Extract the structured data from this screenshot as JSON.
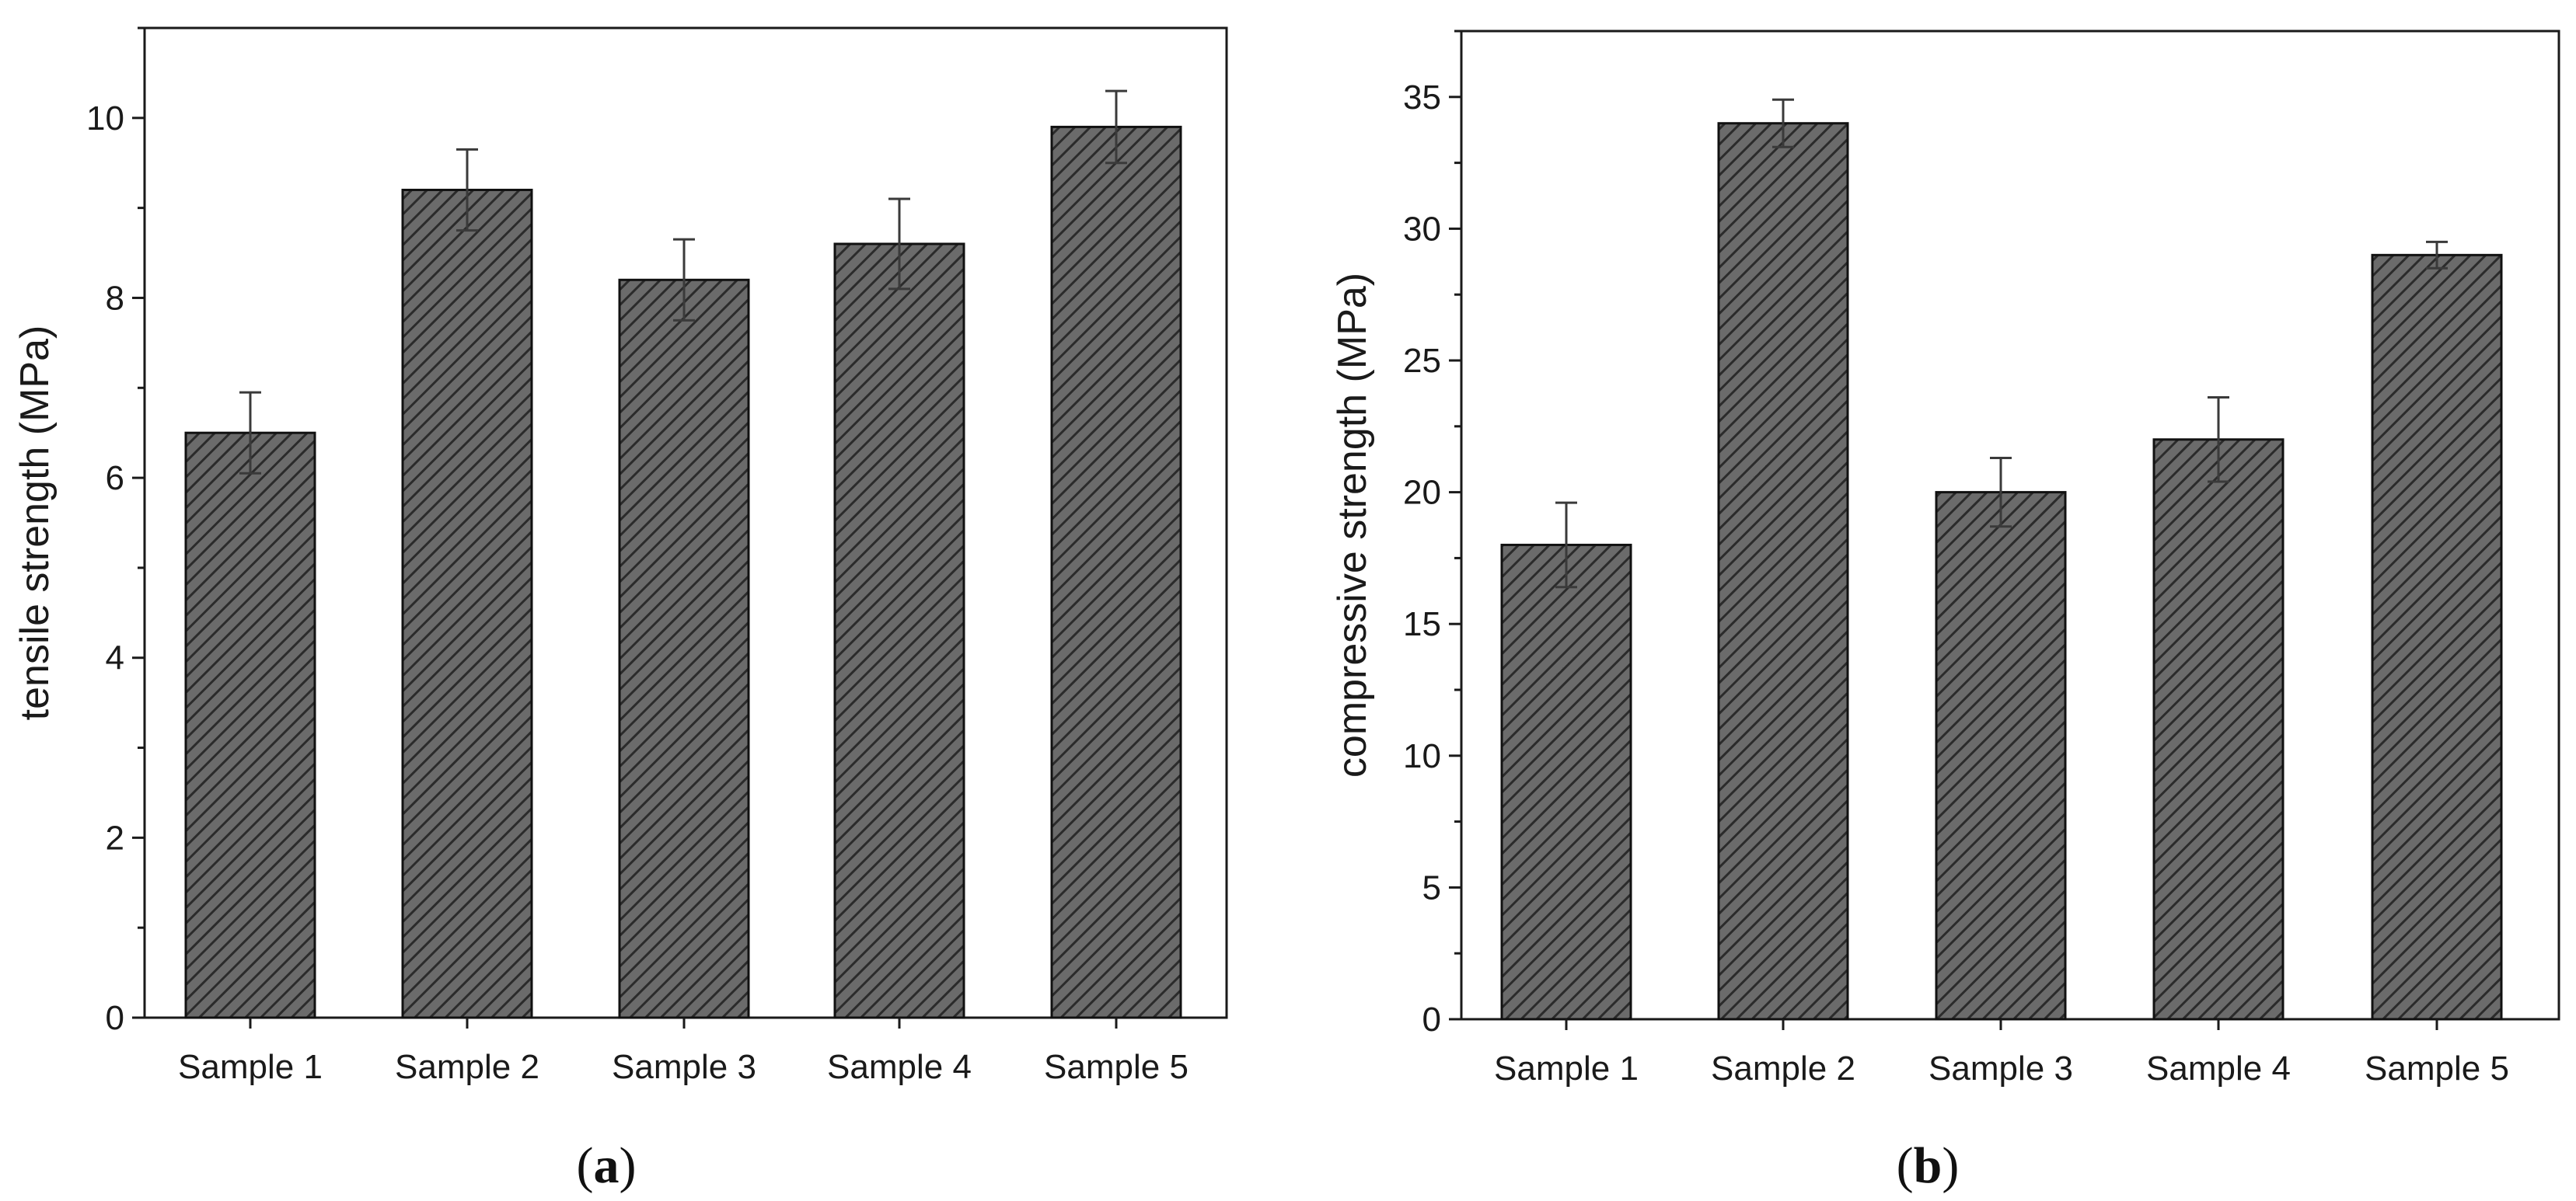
{
  "chart_data": [
    {
      "type": "bar",
      "panel_label": "a",
      "title": "",
      "xlabel": "",
      "ylabel": "tensile strength (MPa)",
      "categories": [
        "Sample 1",
        "Sample 2",
        "Sample 3",
        "Sample 4",
        "Sample 5"
      ],
      "values": [
        6.5,
        9.2,
        8.2,
        8.6,
        9.9
      ],
      "error": [
        0.45,
        0.45,
        0.45,
        0.5,
        0.4
      ],
      "ylim": [
        0,
        11
      ],
      "yticks": [
        0,
        2,
        4,
        6,
        8,
        10
      ],
      "grid": false,
      "bar_color": "#6b6b6b",
      "hatch_color": "#2b2b2b"
    },
    {
      "type": "bar",
      "panel_label": "b",
      "title": "",
      "xlabel": "",
      "ylabel": "compressive strength (MPa)",
      "categories": [
        "Sample 1",
        "Sample 2",
        "Sample 3",
        "Sample 4",
        "Sample 5"
      ],
      "values": [
        18,
        34,
        20,
        22,
        29
      ],
      "error": [
        1.6,
        0.9,
        1.3,
        1.6,
        0.5
      ],
      "ylim": [
        0,
        37.5
      ],
      "yticks": [
        0,
        5,
        10,
        15,
        20,
        25,
        30,
        35
      ],
      "grid": false,
      "bar_color": "#6b6b6b",
      "hatch_color": "#2b2b2b"
    }
  ]
}
